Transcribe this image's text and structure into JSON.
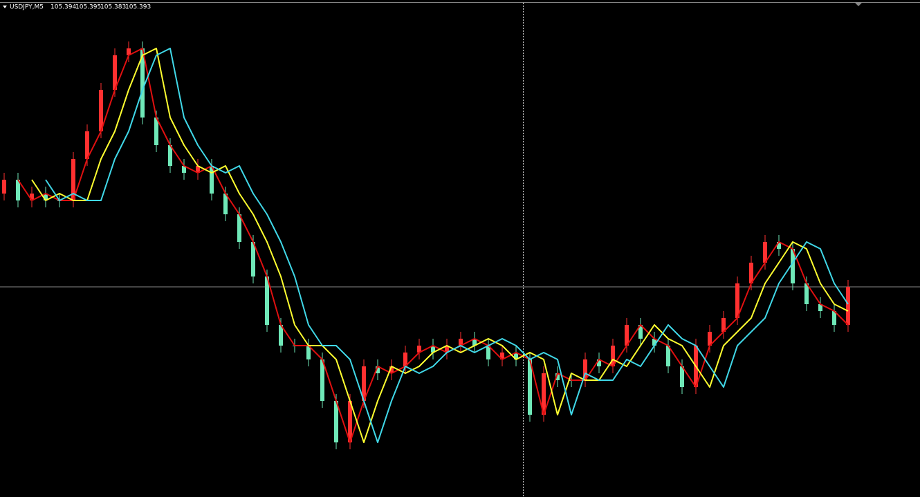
{
  "chart_data": {
    "type": "candlestick",
    "symbol": "USDJPY,M5",
    "quote": [
      105.394,
      105.395,
      105.383,
      105.393
    ],
    "ylim": [
      105.089,
      105.808
    ],
    "bull_color": "#ff3030",
    "bear_color": "#6fe8b8",
    "open": [
      105.528,
      105.548,
      105.518,
      105.528,
      105.518,
      105.518,
      105.578,
      105.618,
      105.678,
      105.728,
      105.738,
      105.638,
      105.598,
      105.568,
      105.558,
      105.568,
      105.528,
      105.498,
      105.458,
      105.408,
      105.338,
      105.308,
      105.308,
      105.288,
      105.228,
      105.168,
      105.228,
      105.278,
      105.268,
      105.278,
      105.298,
      105.308,
      105.298,
      105.308,
      105.318,
      105.308,
      105.288,
      105.298,
      105.288,
      105.208,
      105.268,
      105.258,
      105.258,
      105.288,
      105.278,
      105.308,
      105.338,
      105.318,
      105.308,
      105.278,
      105.248,
      105.308,
      105.328,
      105.348,
      105.398,
      105.428,
      105.458,
      105.448,
      105.398,
      105.368,
      105.358,
      105.338
    ],
    "high": [
      105.558,
      105.558,
      105.538,
      105.538,
      105.528,
      105.588,
      105.628,
      105.688,
      105.738,
      105.748,
      105.748,
      105.648,
      105.608,
      105.578,
      105.578,
      105.578,
      105.538,
      105.508,
      105.468,
      105.418,
      105.348,
      105.318,
      105.318,
      105.298,
      105.238,
      105.238,
      105.288,
      105.288,
      105.288,
      105.308,
      105.318,
      105.318,
      105.318,
      105.328,
      105.328,
      105.318,
      105.308,
      105.308,
      105.298,
      105.278,
      105.278,
      105.268,
      105.298,
      105.298,
      105.318,
      105.348,
      105.348,
      105.328,
      105.318,
      105.288,
      105.318,
      105.338,
      105.358,
      105.408,
      105.438,
      105.468,
      105.468,
      105.458,
      105.408,
      105.378,
      105.368,
      105.403
    ],
    "low": [
      105.518,
      105.508,
      105.508,
      105.508,
      105.508,
      105.508,
      105.568,
      105.608,
      105.668,
      105.718,
      105.628,
      105.588,
      105.558,
      105.548,
      105.548,
      105.518,
      105.488,
      105.448,
      105.398,
      105.328,
      105.298,
      105.298,
      105.278,
      105.218,
      105.158,
      105.158,
      105.218,
      105.258,
      105.258,
      105.268,
      105.288,
      105.288,
      105.288,
      105.298,
      105.298,
      105.278,
      105.278,
      105.278,
      105.198,
      105.198,
      105.248,
      105.248,
      105.248,
      105.268,
      105.268,
      105.298,
      105.308,
      105.298,
      105.268,
      105.238,
      105.238,
      105.298,
      105.318,
      105.338,
      105.388,
      105.418,
      105.438,
      105.388,
      105.358,
      105.348,
      105.328,
      105.328
    ],
    "close": [
      105.548,
      105.518,
      105.528,
      105.518,
      105.518,
      105.578,
      105.618,
      105.678,
      105.728,
      105.738,
      105.638,
      105.598,
      105.568,
      105.558,
      105.568,
      105.528,
      105.498,
      105.458,
      105.408,
      105.338,
      105.308,
      105.308,
      105.288,
      105.228,
      105.168,
      105.228,
      105.278,
      105.268,
      105.278,
      105.298,
      105.308,
      105.298,
      105.308,
      105.318,
      105.308,
      105.288,
      105.298,
      105.288,
      105.208,
      105.268,
      105.258,
      105.258,
      105.288,
      105.278,
      105.308,
      105.338,
      105.318,
      105.308,
      105.278,
      105.248,
      105.308,
      105.328,
      105.348,
      105.398,
      105.428,
      105.458,
      105.448,
      105.398,
      105.368,
      105.358,
      105.338,
      105.393
    ],
    "series": [
      {
        "color": "#e01010",
        "values": [
          null,
          105.548,
          105.518,
          105.528,
          105.518,
          105.518,
          105.578,
          105.618,
          105.678,
          105.728,
          105.738,
          105.638,
          105.598,
          105.568,
          105.558,
          105.568,
          105.528,
          105.498,
          105.458,
          105.408,
          105.338,
          105.308,
          105.308,
          105.288,
          105.228,
          105.168,
          105.228,
          105.278,
          105.268,
          105.278,
          105.298,
          105.308,
          105.298,
          105.308,
          105.318,
          105.308,
          105.288,
          105.298,
          105.288,
          105.208,
          105.268,
          105.258,
          105.258,
          105.288,
          105.278,
          105.308,
          105.338,
          105.318,
          105.308,
          105.278,
          105.248,
          105.308,
          105.328,
          105.348,
          105.398,
          105.428,
          105.458,
          105.448,
          105.398,
          105.368,
          105.358,
          105.338
        ]
      },
      {
        "color": "#ffff30",
        "values": [
          null,
          null,
          105.548,
          105.518,
          105.528,
          105.518,
          105.518,
          105.578,
          105.618,
          105.678,
          105.728,
          105.738,
          105.638,
          105.598,
          105.568,
          105.558,
          105.568,
          105.528,
          105.498,
          105.458,
          105.408,
          105.338,
          105.308,
          105.308,
          105.288,
          105.228,
          105.168,
          105.228,
          105.278,
          105.268,
          105.278,
          105.298,
          105.308,
          105.298,
          105.308,
          105.318,
          105.308,
          105.288,
          105.298,
          105.288,
          105.208,
          105.268,
          105.258,
          105.258,
          105.288,
          105.278,
          105.308,
          105.338,
          105.318,
          105.308,
          105.278,
          105.248,
          105.308,
          105.328,
          105.348,
          105.398,
          105.428,
          105.458,
          105.448,
          105.398,
          105.368,
          105.358
        ]
      },
      {
        "color": "#40d8e8",
        "values": [
          null,
          null,
          null,
          105.548,
          105.518,
          105.528,
          105.518,
          105.518,
          105.578,
          105.618,
          105.678,
          105.728,
          105.738,
          105.638,
          105.598,
          105.568,
          105.558,
          105.568,
          105.528,
          105.498,
          105.458,
          105.408,
          105.338,
          105.308,
          105.308,
          105.288,
          105.228,
          105.168,
          105.228,
          105.278,
          105.268,
          105.278,
          105.298,
          105.308,
          105.298,
          105.308,
          105.318,
          105.308,
          105.288,
          105.298,
          105.288,
          105.208,
          105.268,
          105.258,
          105.258,
          105.288,
          105.278,
          105.308,
          105.338,
          105.318,
          105.308,
          105.278,
          105.248,
          105.308,
          105.328,
          105.348,
          105.398,
          105.428,
          105.458,
          105.448,
          105.398,
          105.368
        ]
      }
    ]
  }
}
